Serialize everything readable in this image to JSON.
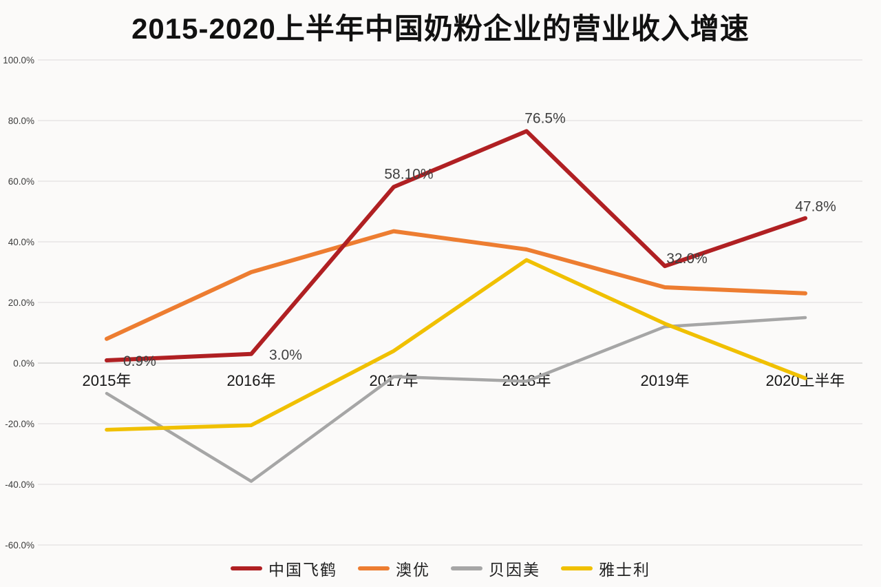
{
  "title": "2015-2020上半年中国奶粉企业的营业收入增速",
  "colors": {
    "background": "#fbfaf9",
    "grid": "#dcdbda",
    "zero_line": "#c3c2c1",
    "axis_text": "#3c3c3c",
    "category_text": "#161616",
    "data_label_text": "#3f3f3f"
  },
  "chart_data": {
    "type": "line",
    "title": "2015-2020上半年中国奶粉企业的营业收入增速",
    "xlabel": "",
    "ylabel": "",
    "categories": [
      "2015年",
      "2016年",
      "2017年",
      "2018年",
      "2019年",
      "2020上半年"
    ],
    "y_ticks": [
      "100.0%",
      "80.0%",
      "60.0%",
      "40.0%",
      "20.0%",
      "0.0%",
      "-20.0%",
      "-40.0%",
      "-60.0%"
    ],
    "y_tick_values": [
      100,
      80,
      60,
      40,
      20,
      0,
      -20,
      -40,
      -60
    ],
    "ylim": [
      -60,
      100
    ],
    "grid": true,
    "legend_position": "bottom",
    "series": [
      {
        "name": "中国飞鹤",
        "color": "#b02023",
        "values": [
          0.9,
          3.0,
          58.1,
          76.5,
          32.0,
          47.8
        ],
        "point_labels": [
          "0.9%",
          "3.0%",
          "58.10%",
          "76.5%",
          "32.0%",
          "47.8%"
        ]
      },
      {
        "name": "澳优",
        "color": "#ed7d31",
        "values": [
          8,
          30,
          43.5,
          37.5,
          25,
          23
        ],
        "point_labels": []
      },
      {
        "name": "贝因美",
        "color": "#a6a6a6",
        "values": [
          -10,
          -39,
          -4.5,
          -6,
          12,
          15
        ],
        "point_labels": []
      },
      {
        "name": "雅士利",
        "color": "#f0c000",
        "values": [
          -22,
          -20.5,
          4,
          34,
          13,
          -5
        ],
        "point_labels": []
      }
    ]
  }
}
